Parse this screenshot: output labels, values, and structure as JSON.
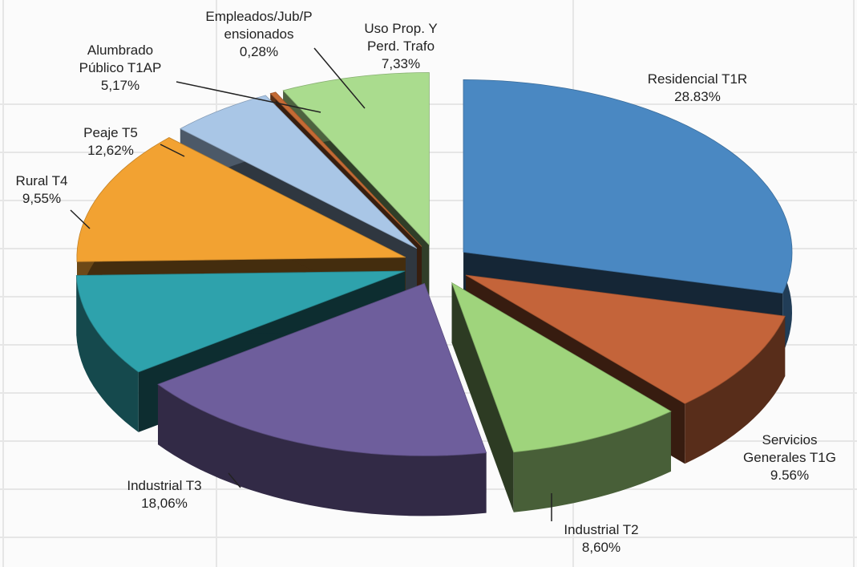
{
  "chart_data": {
    "type": "pie3d",
    "categories": [
      "Residencial T1R",
      "Servicios Generales T1G",
      "Industrial T2",
      "Industrial T3",
      "Rural T4",
      "Peaje T5",
      "Alumbrado Público T1AP",
      "Empleados/Jub/Pensionados",
      "Uso Prop. Y Perd. Trafo"
    ],
    "values": [
      28.83,
      9.56,
      8.6,
      18.06,
      9.55,
      12.62,
      5.17,
      0.28,
      7.33
    ],
    "value_labels": [
      "28.83%",
      "9.56%",
      "8,60%",
      "18,06%",
      "9,55%",
      "12,62%",
      "5,17%",
      "0,28%",
      "7,33%"
    ],
    "colors": [
      "#4a88c2",
      "#c4643a",
      "#9fd47c",
      "#6e5e9c",
      "#2ea2ac",
      "#f2a232",
      "#a9c6e6",
      "#c46a34",
      "#aadc8e"
    ]
  }
}
